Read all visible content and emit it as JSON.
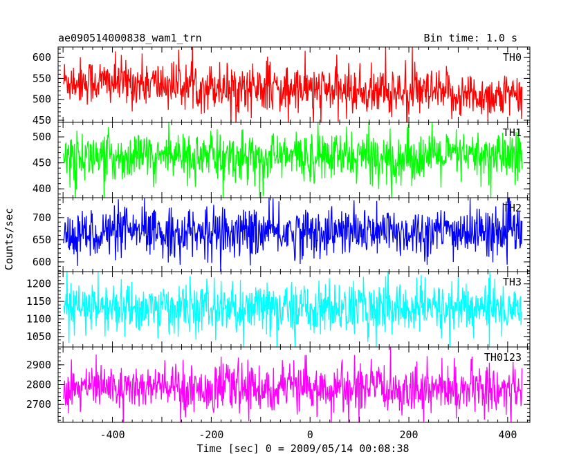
{
  "chart_data": {
    "type": "line",
    "title_left": "ae090514000838_wam1_trn",
    "title_right": "Bin time: 1.0 s",
    "xlabel": "Time [sec] 0 = 2009/05/14 00:08:38",
    "ylabel": "Counts/sec",
    "xlim": [
      -510,
      445
    ],
    "xticks": [
      -400,
      -200,
      0,
      200,
      400
    ],
    "x_start": -499,
    "x_end": 429,
    "bin": 1.0,
    "grid": false,
    "series": [
      {
        "name": "TH0",
        "color": "#ff0000",
        "ylim": [
          445,
          625
        ],
        "yticks": [
          450,
          500,
          550,
          600
        ],
        "level_start": 545,
        "level_end": 505,
        "noise": 28,
        "extreme_hi": 625,
        "extreme_lo": 440
      },
      {
        "name": "TH1",
        "color": "#00ff00",
        "ylim": [
          383,
          528
        ],
        "yticks": [
          400,
          450,
          500
        ],
        "level_start": 462,
        "level_end": 462,
        "noise": 24,
        "extreme_hi": 530,
        "extreme_lo": 380
      },
      {
        "name": "TH2",
        "color": "#0000ff",
        "ylim": [
          578,
          745
        ],
        "yticks": [
          600,
          650,
          700
        ],
        "level_start": 665,
        "level_end": 668,
        "noise": 28,
        "extreme_hi": 750,
        "extreme_lo": 575
      },
      {
        "name": "TH3",
        "color": "#00ffff",
        "ylim": [
          1020,
          1235
        ],
        "yticks": [
          1050,
          1100,
          1150,
          1200
        ],
        "level_start": 1130,
        "level_end": 1130,
        "noise": 37,
        "extreme_hi": 1238,
        "extreme_lo": 1015
      },
      {
        "name": "TH0123",
        "color": "#ff00ff",
        "ylim": [
          2610,
          2990
        ],
        "yticks": [
          2700,
          2800,
          2900
        ],
        "level_start": 2790,
        "level_end": 2775,
        "noise": 60,
        "extreme_hi": 2995,
        "extreme_lo": 2605
      }
    ]
  }
}
